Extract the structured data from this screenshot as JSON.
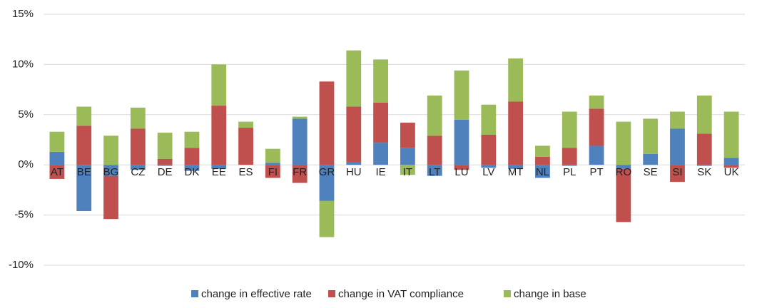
{
  "chart_data": {
    "type": "bar",
    "stacked": true,
    "categories": [
      "AT",
      "BE",
      "BG",
      "CZ",
      "DE",
      "DK",
      "EE",
      "ES",
      "FI",
      "FR",
      "GR",
      "HU",
      "IE",
      "IT",
      "LT",
      "LU",
      "LV",
      "MT",
      "NL",
      "PL",
      "PT",
      "RO",
      "SE",
      "SI",
      "SK",
      "UK"
    ],
    "series": [
      {
        "name": "change in effective rate",
        "color": "#4f81bd",
        "values": [
          1.3,
          -4.6,
          -1.1,
          -0.5,
          -0.1,
          -0.6,
          -0.4,
          0,
          0.2,
          4.6,
          -3.6,
          0.3,
          2.2,
          1.7,
          -1.1,
          4.5,
          -0.3,
          -0.4,
          -1.3,
          -0.1,
          1.9,
          -0.4,
          1.1,
          3.6,
          -0.1,
          0.7
        ]
      },
      {
        "name": "change in VAT compliance",
        "color": "#c0504d",
        "values": [
          -1.4,
          3.9,
          -4.3,
          3.6,
          0.6,
          1.7,
          5.9,
          3.7,
          -1.3,
          -1.8,
          8.3,
          5.5,
          4.0,
          2.5,
          2.9,
          -0.5,
          3.0,
          6.3,
          0.8,
          1.7,
          3.7,
          -5.3,
          0,
          -1.7,
          3.1,
          -0.3
        ]
      },
      {
        "name": "change in base",
        "color": "#9bbb59",
        "values": [
          2.0,
          1.9,
          2.9,
          2.1,
          2.6,
          1.6,
          4.1,
          0.6,
          1.4,
          0.2,
          -3.6,
          5.6,
          4.3,
          -1.0,
          4.0,
          4.9,
          3.0,
          4.3,
          1.1,
          3.6,
          1.3,
          4.3,
          3.5,
          1.7,
          3.8,
          4.6
        ]
      }
    ],
    "ylim": [
      -10,
      15
    ],
    "yticks": [
      {
        "value": -10,
        "label": "-10%"
      },
      {
        "value": -5,
        "label": "-5%"
      },
      {
        "value": 0,
        "label": "0%"
      },
      {
        "value": 5,
        "label": "5%"
      },
      {
        "value": 10,
        "label": "10%"
      },
      {
        "value": 15,
        "label": "15%"
      }
    ],
    "grid": true,
    "legend": "bottom"
  }
}
